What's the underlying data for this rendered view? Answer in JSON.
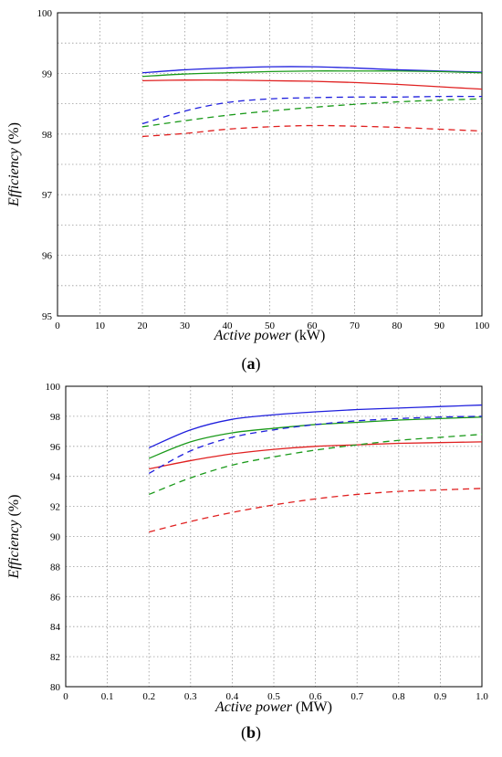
{
  "chart_data": [
    {
      "type": "line",
      "panel_label": "a",
      "xlabel_italic": "Active power",
      "xlabel_unit": "(kW)",
      "ylabel_italic": "Efficiency",
      "ylabel_unit": "(%)",
      "xlim": [
        0,
        100
      ],
      "ylim": [
        95,
        100
      ],
      "xticks": [
        "0",
        "10",
        "20",
        "30",
        "40",
        "50",
        "60",
        "70",
        "80",
        "90",
        "100"
      ],
      "yticks": [
        "95",
        "96",
        "97",
        "98",
        "99",
        "100"
      ],
      "x_grid_values": [
        0,
        10,
        20,
        30,
        40,
        50,
        60,
        70,
        80,
        90,
        100
      ],
      "y_grid_values": [
        95,
        95.5,
        96,
        96.5,
        97,
        97.5,
        98,
        98.5,
        99,
        99.5,
        100
      ],
      "grid": true,
      "x": [
        20,
        30,
        40,
        50,
        60,
        70,
        80,
        90,
        100
      ],
      "series": [
        {
          "color": "#1f1fdd",
          "dash": "solid",
          "values": [
            99.01,
            99.06,
            99.09,
            99.11,
            99.11,
            99.09,
            99.06,
            99.04,
            99.02
          ]
        },
        {
          "color": "#1a9a1a",
          "dash": "solid",
          "values": [
            98.95,
            98.99,
            99.01,
            99.03,
            99.04,
            99.04,
            99.04,
            99.03,
            99.01
          ]
        },
        {
          "color": "#e02020",
          "dash": "solid",
          "values": [
            98.88,
            98.89,
            98.89,
            98.88,
            98.87,
            98.85,
            98.82,
            98.78,
            98.74
          ]
        },
        {
          "color": "#1f1fdd",
          "dash": "dashed",
          "values": [
            98.17,
            98.38,
            98.52,
            98.58,
            98.6,
            98.61,
            98.61,
            98.62,
            98.62
          ]
        },
        {
          "color": "#1a9a1a",
          "dash": "dashed",
          "values": [
            98.12,
            98.22,
            98.31,
            98.38,
            98.44,
            98.49,
            98.53,
            98.56,
            98.58
          ]
        },
        {
          "color": "#e02020",
          "dash": "dashed",
          "values": [
            97.96,
            98.01,
            98.08,
            98.12,
            98.14,
            98.13,
            98.11,
            98.08,
            98.05
          ]
        }
      ]
    },
    {
      "type": "line",
      "panel_label": "b",
      "xlabel_italic": "Active power",
      "xlabel_unit": "(MW)",
      "ylabel_italic": "Efficiency",
      "ylabel_unit": "(%)",
      "xlim": [
        0,
        1
      ],
      "ylim": [
        80,
        100
      ],
      "xticks": [
        "0",
        "0.1",
        "0.2",
        "0.3",
        "0.4",
        "0.5",
        "0.6",
        "0.7",
        "0.8",
        "0.9",
        "1.0"
      ],
      "yticks": [
        "80",
        "82",
        "84",
        "86",
        "88",
        "90",
        "92",
        "94",
        "96",
        "98",
        "100"
      ],
      "x_grid_values": [
        0,
        0.1,
        0.2,
        0.3,
        0.4,
        0.5,
        0.6,
        0.7,
        0.8,
        0.9,
        1.0
      ],
      "y_grid_values": [
        80,
        82,
        84,
        86,
        88,
        90,
        92,
        94,
        96,
        98,
        100
      ],
      "grid": true,
      "x": [
        0.2,
        0.3,
        0.4,
        0.5,
        0.6,
        0.7,
        0.8,
        0.9,
        1.0
      ],
      "series": [
        {
          "color": "#1f1fdd",
          "dash": "solid",
          "values": [
            95.9,
            97.1,
            97.8,
            98.1,
            98.3,
            98.45,
            98.55,
            98.65,
            98.75
          ]
        },
        {
          "color": "#1a9a1a",
          "dash": "solid",
          "values": [
            95.2,
            96.3,
            96.9,
            97.2,
            97.45,
            97.6,
            97.75,
            97.85,
            97.95
          ]
        },
        {
          "color": "#e02020",
          "dash": "solid",
          "values": [
            94.5,
            95.05,
            95.5,
            95.8,
            96.0,
            96.1,
            96.2,
            96.25,
            96.3
          ]
        },
        {
          "color": "#1f1fdd",
          "dash": "dashed",
          "values": [
            94.2,
            95.7,
            96.6,
            97.1,
            97.45,
            97.7,
            97.85,
            97.95,
            98.0
          ]
        },
        {
          "color": "#1a9a1a",
          "dash": "dashed",
          "values": [
            92.8,
            93.9,
            94.75,
            95.3,
            95.75,
            96.1,
            96.4,
            96.6,
            96.8
          ]
        },
        {
          "color": "#e02020",
          "dash": "dashed",
          "values": [
            90.3,
            91.0,
            91.6,
            92.1,
            92.5,
            92.8,
            93.0,
            93.1,
            93.2
          ]
        }
      ]
    }
  ]
}
